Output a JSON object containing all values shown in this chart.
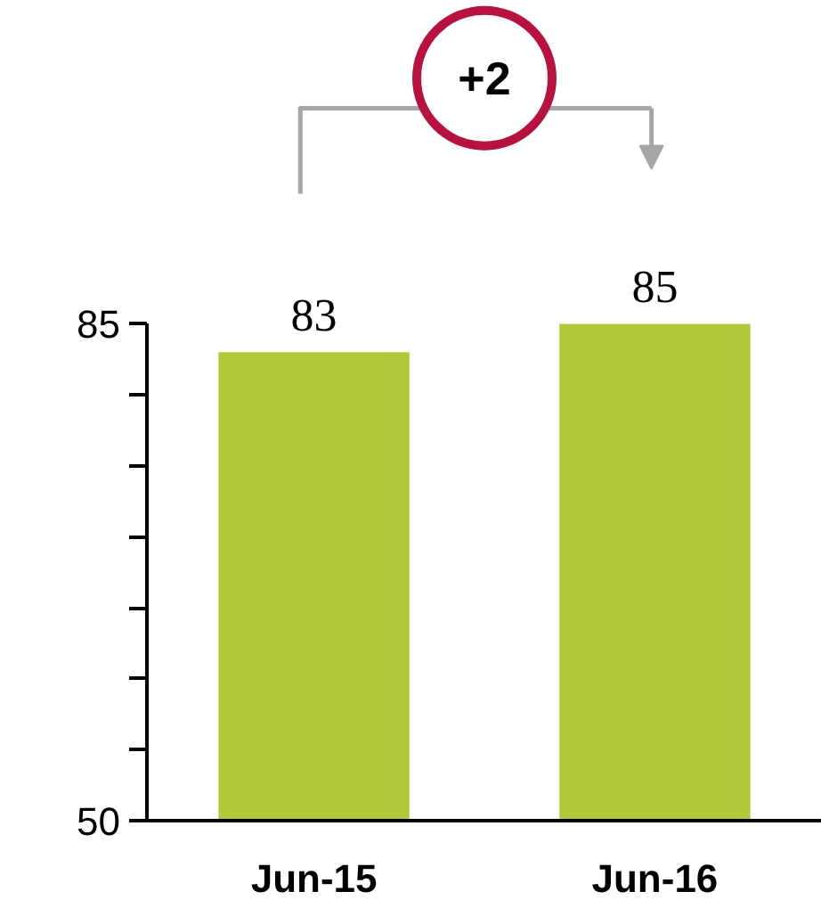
{
  "chart_data": {
    "type": "bar",
    "categories": [
      "Jun-15",
      "Jun-16"
    ],
    "values": [
      83,
      85
    ],
    "color": "#afc93a",
    "data_labels": true,
    "ylim": [
      50,
      85
    ],
    "yticks": [
      50,
      {
        "value": 55,
        "label": null
      },
      {
        "value": 60,
        "label": null
      },
      {
        "value": 65,
        "label": null
      },
      {
        "value": 70,
        "label": null
      },
      {
        "value": 75,
        "label": null
      },
      {
        "value": 80,
        "label": null
      },
      85
    ],
    "grid": false,
    "annotations": [
      "+2"
    ]
  }
}
